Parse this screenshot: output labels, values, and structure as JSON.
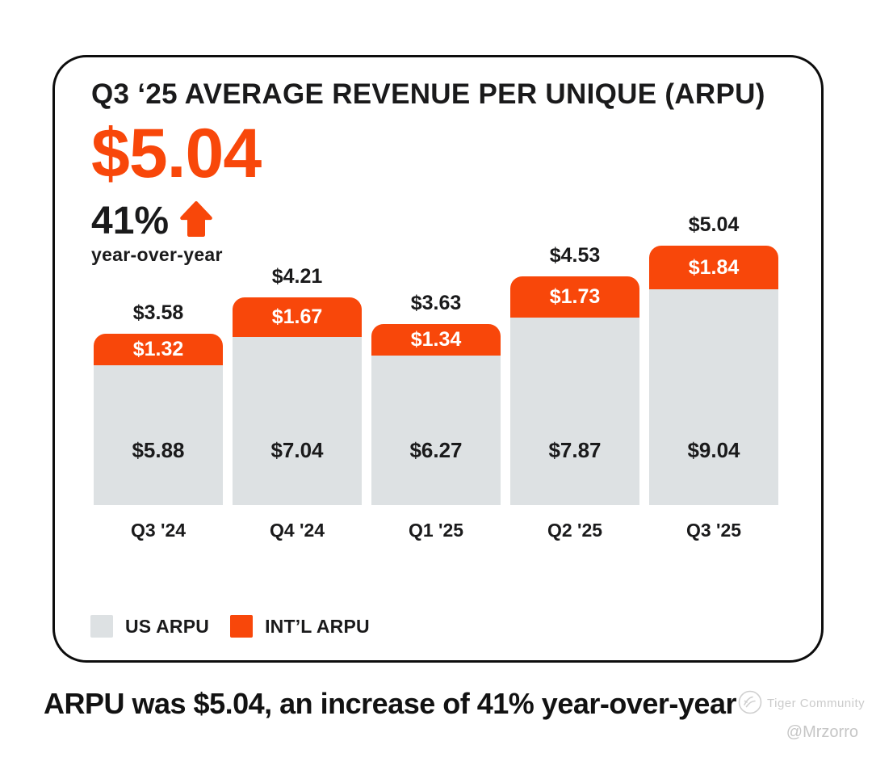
{
  "card": {
    "headline_value": "$5.04",
    "growth_pct": "41%",
    "growth_caption": "year-over-year"
  },
  "chart_data": {
    "type": "bar",
    "stacked": true,
    "title": "Q3 ‘25 AVERAGE REVENUE PER UNIQUE (ARPU)",
    "categories": [
      "Q3 '24",
      "Q4 '24",
      "Q1 '25",
      "Q2 '25",
      "Q3 '25"
    ],
    "series": [
      {
        "name": "US ARPU",
        "color": "#DDE1E3",
        "label_color": "#1A1A1B",
        "values": [
          5.88,
          7.04,
          6.27,
          7.87,
          9.04
        ]
      },
      {
        "name": "INT’L ARPU",
        "color": "#F8470A",
        "label_color": "#FFFFFF",
        "values": [
          1.32,
          1.67,
          1.34,
          1.73,
          1.84
        ]
      }
    ],
    "totals": [
      3.58,
      4.21,
      3.63,
      4.53,
      5.04
    ],
    "value_prefix": "$",
    "grid": false,
    "legend_position": "bottom-left",
    "xlabel": "",
    "ylabel": ""
  },
  "footer": {
    "caption": "ARPU was $5.04, an increase of 41% year-over-year"
  },
  "watermark": {
    "brand": "Tiger Community",
    "handle": "@Mrzorro"
  },
  "colors": {
    "accent_orange": "#F8470A",
    "us_gray": "#DDE1E3",
    "text_dark": "#1A1A1B",
    "watermark_gray": "#CBCBCB"
  }
}
